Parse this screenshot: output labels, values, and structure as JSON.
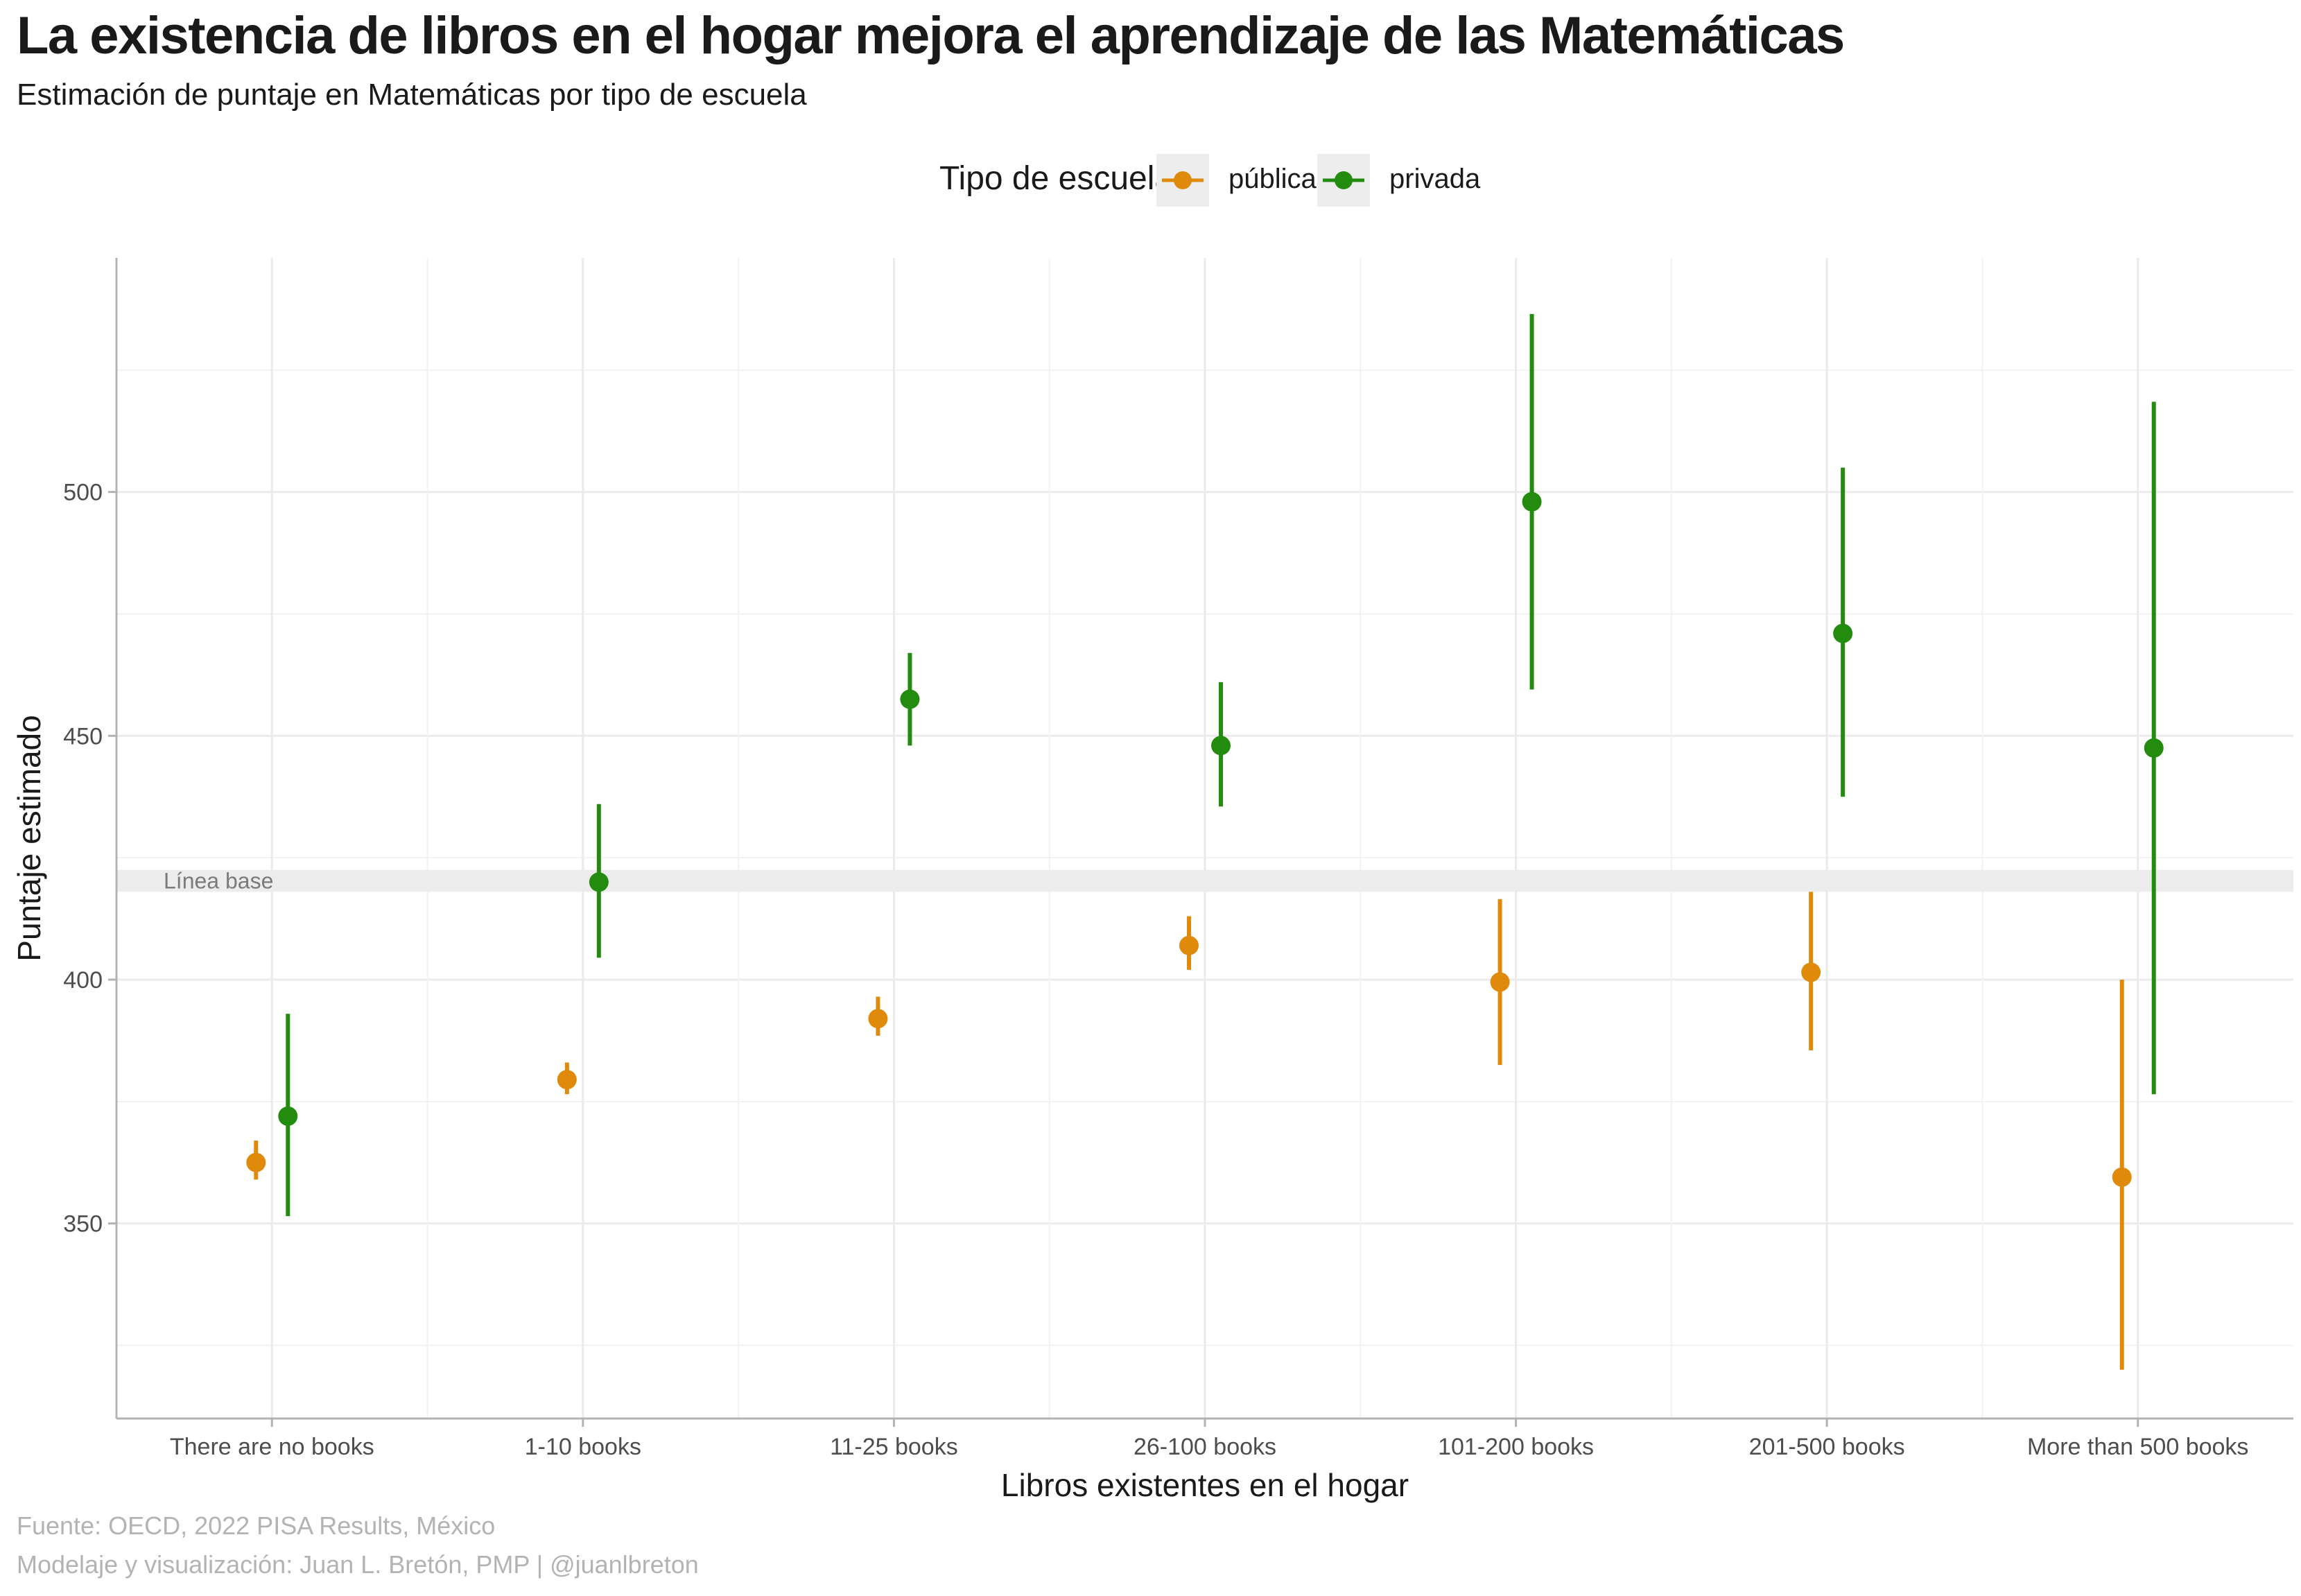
{
  "header": {
    "title": "La existencia de libros en el hogar mejora el aprendizaje de las Matemáticas",
    "subtitle": "Estimación de puntaje en Matemáticas por tipo de escuela"
  },
  "legend": {
    "title": "Tipo de escuela",
    "items": [
      {
        "label": "pública",
        "color": "#E08A0B"
      },
      {
        "label": "privada",
        "color": "#238B0E"
      }
    ]
  },
  "caption": {
    "line1": "Fuente: OECD, 2022 PISA Results, México",
    "line2": "Modelaje y visualización: Juan L. Bretón, PMP | @juanlbreton"
  },
  "chart_data": {
    "type": "scatter",
    "xlabel": "Libros existentes en el hogar",
    "ylabel": "Puntaje estimado",
    "categories": [
      "There are no books",
      "1-10 books",
      "11-25 books",
      "26-100 books",
      "101-200 books",
      "201-500 books",
      "More than 500 books"
    ],
    "yticks": [
      350,
      400,
      450,
      500
    ],
    "ylim": [
      310,
      548
    ],
    "grid": true,
    "legend_position": "top",
    "baseline": {
      "label": "Línea base",
      "low": 418,
      "high": 422.5
    },
    "series": [
      {
        "name": "pública",
        "color": "#E08A0B",
        "values": [
          362.5,
          379.5,
          392,
          407,
          399.5,
          401.5,
          359.5
        ],
        "lower": [
          359,
          376.5,
          388.5,
          402,
          382.5,
          385.5,
          320
        ],
        "upper": [
          367,
          383,
          396.5,
          413,
          416.5,
          418,
          400
        ]
      },
      {
        "name": "privada",
        "color": "#238B0E",
        "values": [
          372,
          420,
          457.5,
          448,
          498,
          471,
          447.5
        ],
        "lower": [
          351.5,
          404.5,
          448,
          435.5,
          459.5,
          437.5,
          376.5
        ],
        "upper": [
          393,
          436,
          467,
          461,
          536.5,
          505,
          518.5
        ]
      }
    ]
  }
}
